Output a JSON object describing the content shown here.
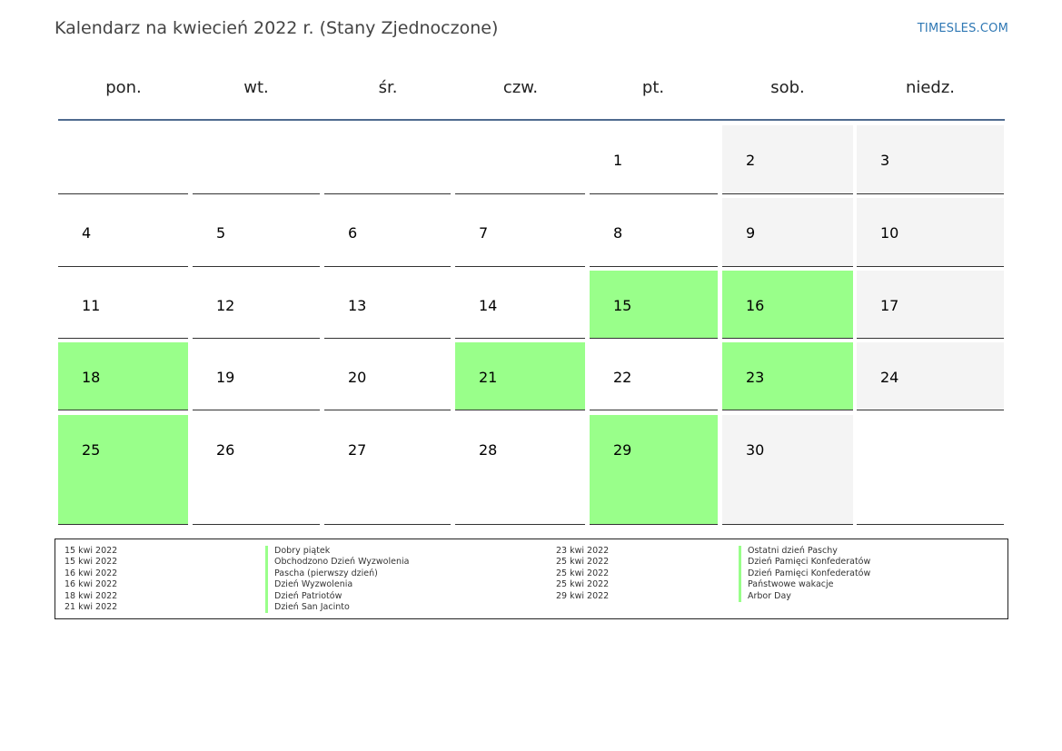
{
  "header": {
    "title": "Kalendarz na kwiecień 2022 r. (Stany Zjednoczone)",
    "brand": "TIMESLES.COM"
  },
  "weekdays": [
    "pon.",
    "wt.",
    "śr.",
    "czw.",
    "pt.",
    "sob.",
    "niedz."
  ],
  "colors": {
    "holiday": "#99ff8a",
    "weekend": "#f4f4f4",
    "header_rule": "#4f6b8f",
    "brand": "#2f78b4"
  },
  "weeks": [
    [
      {
        "day": ""
      },
      {
        "day": ""
      },
      {
        "day": ""
      },
      {
        "day": ""
      },
      {
        "day": "1"
      },
      {
        "day": "2",
        "weekend": true
      },
      {
        "day": "3",
        "weekend": true
      }
    ],
    [
      {
        "day": "4"
      },
      {
        "day": "5"
      },
      {
        "day": "6"
      },
      {
        "day": "7"
      },
      {
        "day": "8"
      },
      {
        "day": "9",
        "weekend": true
      },
      {
        "day": "10",
        "weekend": true
      }
    ],
    [
      {
        "day": "11"
      },
      {
        "day": "12"
      },
      {
        "day": "13"
      },
      {
        "day": "14"
      },
      {
        "day": "15",
        "holiday": true
      },
      {
        "day": "16",
        "holiday": true
      },
      {
        "day": "17",
        "weekend": true
      }
    ],
    [
      {
        "day": "18",
        "holiday": true
      },
      {
        "day": "19"
      },
      {
        "day": "20"
      },
      {
        "day": "21",
        "holiday": true
      },
      {
        "day": "22"
      },
      {
        "day": "23",
        "holiday": true
      },
      {
        "day": "24",
        "weekend": true
      }
    ],
    [
      {
        "day": "25",
        "holiday": true
      },
      {
        "day": "26"
      },
      {
        "day": "27"
      },
      {
        "day": "28"
      },
      {
        "day": "29",
        "holiday": true
      },
      {
        "day": "30",
        "weekend": true
      },
      {
        "day": ""
      }
    ]
  ],
  "legend": {
    "left": [
      {
        "date": "15 kwi 2022",
        "name": "Dobry piątek"
      },
      {
        "date": "15 kwi 2022",
        "name": "Obchodzono Dzień Wyzwolenia"
      },
      {
        "date": "16 kwi 2022",
        "name": "Pascha (pierwszy dzień)"
      },
      {
        "date": "16 kwi 2022",
        "name": "Dzień Wyzwolenia"
      },
      {
        "date": "18 kwi 2022",
        "name": "Dzień Patriotów"
      },
      {
        "date": "21 kwi 2022",
        "name": "Dzień San Jacinto"
      }
    ],
    "right": [
      {
        "date": "23 kwi 2022",
        "name": "Ostatni dzień Paschy"
      },
      {
        "date": "25 kwi 2022",
        "name": "Dzień Pamięci Konfederatów"
      },
      {
        "date": "25 kwi 2022",
        "name": "Dzień Pamięci Konfederatów"
      },
      {
        "date": "25 kwi 2022",
        "name": "Państwowe wakacje"
      },
      {
        "date": "29 kwi 2022",
        "name": "Arbor Day"
      }
    ]
  }
}
